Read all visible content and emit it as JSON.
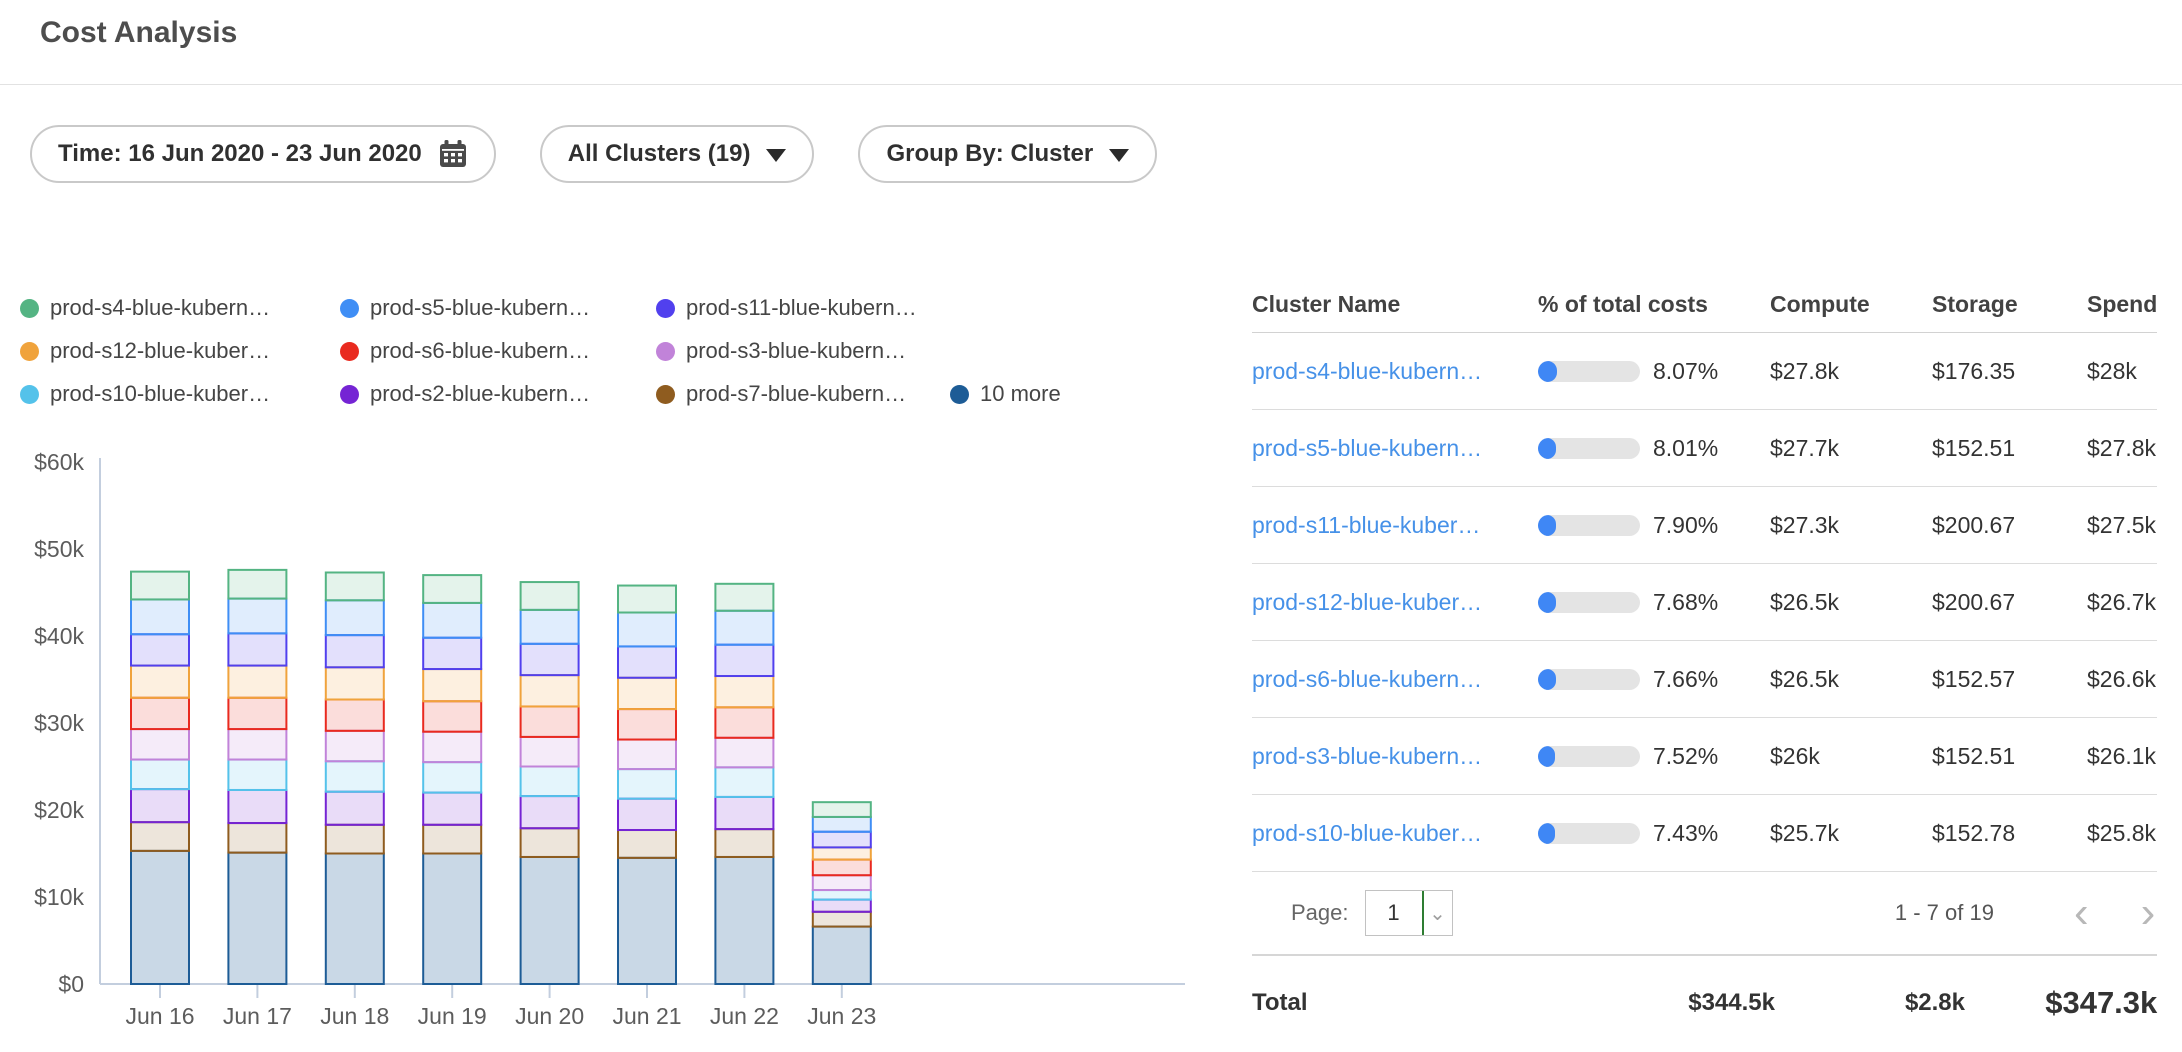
{
  "header": {
    "title": "Cost Analysis"
  },
  "filters": {
    "time": {
      "label": "Time: 16 Jun 2020 - 23 Jun 2020",
      "icon": "calendar-icon"
    },
    "clusters": {
      "label": "All Clusters (19)",
      "icon": "chevron-down-icon"
    },
    "group_by": {
      "label": "Group By: Cluster",
      "icon": "chevron-down-icon"
    }
  },
  "legend": {
    "items": [
      {
        "label": "prod-s4-blue-kubern…",
        "color": "#54b483"
      },
      {
        "label": "prod-s5-blue-kubern…",
        "color": "#3f8ef5"
      },
      {
        "label": "prod-s11-blue-kubern…",
        "color": "#5140ee"
      },
      {
        "label": "prod-s12-blue-kuber…",
        "color": "#f0a33c"
      },
      {
        "label": "prod-s6-blue-kubern…",
        "color": "#e92a1f"
      },
      {
        "label": "prod-s3-blue-kubern…",
        "color": "#c183d9"
      },
      {
        "label": "prod-s10-blue-kuber…",
        "color": "#54c2ea"
      },
      {
        "label": "prod-s2-blue-kubern…",
        "color": "#7524d4"
      },
      {
        "label": "prod-s7-blue-kubern…",
        "color": "#8f5c1f"
      },
      {
        "label": "10 more",
        "color": "#1d5c96"
      }
    ]
  },
  "chart_data": {
    "type": "bar",
    "stacked": true,
    "x": [
      "Jun 16",
      "Jun 17",
      "Jun 18",
      "Jun 19",
      "Jun 20",
      "Jun 21",
      "Jun 22",
      "Jun 23"
    ],
    "yticks": [
      "$0",
      "$10k",
      "$20k",
      "$30k",
      "$40k",
      "$50k",
      "$60k"
    ],
    "ylim": [
      0,
      60
    ],
    "unit": "thousand USD per day",
    "legend_position": "top",
    "grid": false,
    "series": [
      {
        "name": "10 more",
        "color": "#1d5c96",
        "values": [
          15.3,
          15.1,
          15.0,
          15.0,
          14.6,
          14.5,
          14.6,
          6.6
        ]
      },
      {
        "name": "prod-s7-blue-kubern…",
        "color": "#8f5c1f",
        "values": [
          3.3,
          3.4,
          3.3,
          3.3,
          3.3,
          3.2,
          3.2,
          1.7
        ]
      },
      {
        "name": "prod-s2-blue-kubern…",
        "color": "#7524d4",
        "values": [
          3.8,
          3.8,
          3.8,
          3.7,
          3.7,
          3.6,
          3.7,
          1.4
        ]
      },
      {
        "name": "prod-s10-blue-kuber…",
        "color": "#54c2ea",
        "values": [
          3.4,
          3.5,
          3.5,
          3.5,
          3.4,
          3.4,
          3.4,
          1.1
        ]
      },
      {
        "name": "prod-s3-blue-kubern…",
        "color": "#c183d9",
        "values": [
          3.5,
          3.5,
          3.5,
          3.5,
          3.4,
          3.4,
          3.4,
          1.7
        ]
      },
      {
        "name": "prod-s6-blue-kubern…",
        "color": "#e92a1f",
        "values": [
          3.6,
          3.6,
          3.6,
          3.5,
          3.5,
          3.5,
          3.5,
          1.8
        ]
      },
      {
        "name": "prod-s12-blue-kuber…",
        "color": "#f0a33c",
        "values": [
          3.7,
          3.7,
          3.7,
          3.7,
          3.6,
          3.6,
          3.6,
          1.4
        ]
      },
      {
        "name": "prod-s11-blue-kubern…",
        "color": "#5140ee",
        "values": [
          3.6,
          3.7,
          3.7,
          3.6,
          3.6,
          3.6,
          3.6,
          1.8
        ]
      },
      {
        "name": "prod-s5-blue-kubern…",
        "color": "#3f8ef5",
        "values": [
          4.0,
          4.0,
          4.0,
          4.0,
          3.9,
          3.9,
          3.9,
          1.7
        ]
      },
      {
        "name": "prod-s4-blue-kubern…",
        "color": "#54b483",
        "values": [
          3.2,
          3.3,
          3.2,
          3.2,
          3.2,
          3.1,
          3.1,
          1.7
        ]
      }
    ]
  },
  "table": {
    "columns": [
      "Cluster Name",
      "% of total costs",
      "Compute",
      "Storage",
      "Spend"
    ],
    "rows": [
      {
        "name": "prod-s4-blue-kubern…",
        "pct": "8.07%",
        "compute": "$27.8k",
        "storage": "$176.35",
        "spend": "$28k"
      },
      {
        "name": "prod-s5-blue-kubern…",
        "pct": "8.01%",
        "compute": "$27.7k",
        "storage": "$152.51",
        "spend": "$27.8k"
      },
      {
        "name": "prod-s11-blue-kuber…",
        "pct": "7.90%",
        "compute": "$27.3k",
        "storage": "$200.67",
        "spend": "$27.5k"
      },
      {
        "name": "prod-s12-blue-kuber…",
        "pct": "7.68%",
        "compute": "$26.5k",
        "storage": "$200.67",
        "spend": "$26.7k"
      },
      {
        "name": "prod-s6-blue-kubern…",
        "pct": "7.66%",
        "compute": "$26.5k",
        "storage": "$152.57",
        "spend": "$26.6k"
      },
      {
        "name": "prod-s3-blue-kubern…",
        "pct": "7.52%",
        "compute": "$26k",
        "storage": "$152.51",
        "spend": "$26.1k"
      },
      {
        "name": "prod-s10-blue-kuber…",
        "pct": "7.43%",
        "compute": "$25.7k",
        "storage": "$152.78",
        "spend": "$25.8k"
      }
    ],
    "pagination": {
      "page_label": "Page:",
      "page": "1",
      "range": "1 - 7 of 19",
      "prev_icon": "chevron-left-icon",
      "next_icon": "chevron-right-icon"
    },
    "total": {
      "label": "Total",
      "compute": "$344.5k",
      "storage": "$2.8k",
      "spend": "$347.3k"
    }
  },
  "colors": {
    "link": "#4691e8",
    "progress_fill": "#3f87f5",
    "progress_track": "#e4e4e4",
    "select_caret_line": "#2e7d32",
    "axis": "#c3cede",
    "muted_text": "#5c5c5c"
  }
}
